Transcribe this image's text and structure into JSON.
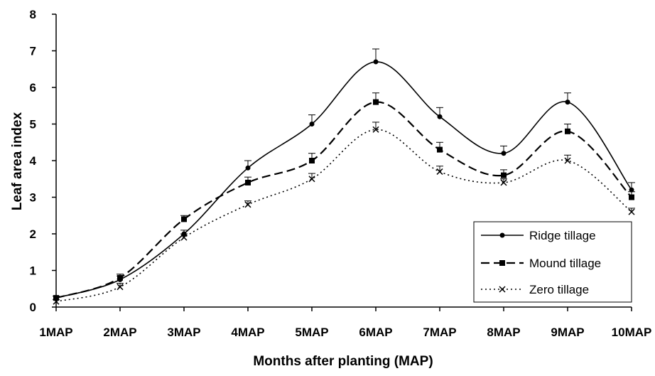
{
  "chart_data": {
    "type": "line",
    "title": "",
    "xlabel": "Months after planting (MAP)",
    "ylabel": "Leaf  area  index",
    "categories": [
      "1MAP",
      "2MAP",
      "3MAP",
      "4MAP",
      "5MAP",
      "6MAP",
      "7MAP",
      "8MAP",
      "9MAP",
      "10MAP"
    ],
    "ylim": [
      0,
      8
    ],
    "yticks": [
      0,
      1,
      2,
      3,
      4,
      5,
      6,
      7,
      8
    ],
    "grid": false,
    "legend_position": "bottom-right",
    "series": [
      {
        "name": "Ridge tillage",
        "line_style": "solid",
        "marker": "circle",
        "values": [
          0.25,
          0.75,
          2.0,
          3.8,
          5.0,
          6.7,
          5.2,
          4.2,
          5.6,
          3.2
        ],
        "errors": [
          0.05,
          0.1,
          0.1,
          0.2,
          0.25,
          0.35,
          0.25,
          0.2,
          0.25,
          0.2
        ]
      },
      {
        "name": "Mound tillage",
        "line_style": "dashed",
        "marker": "square",
        "values": [
          0.25,
          0.8,
          2.4,
          3.4,
          4.0,
          5.6,
          4.3,
          3.6,
          4.8,
          3.0
        ],
        "errors": [
          0.05,
          0.1,
          0.1,
          0.15,
          0.2,
          0.25,
          0.2,
          0.15,
          0.2,
          0.15
        ]
      },
      {
        "name": "Zero tillage",
        "line_style": "dotted",
        "marker": "x",
        "values": [
          0.15,
          0.55,
          1.9,
          2.8,
          3.5,
          4.85,
          3.7,
          3.4,
          4.0,
          2.6
        ],
        "errors": [
          0.05,
          0.1,
          0.1,
          0.1,
          0.15,
          0.2,
          0.15,
          0.1,
          0.15,
          0.1
        ]
      }
    ]
  },
  "colors": {
    "line": "#000000",
    "background": "#ffffff"
  }
}
